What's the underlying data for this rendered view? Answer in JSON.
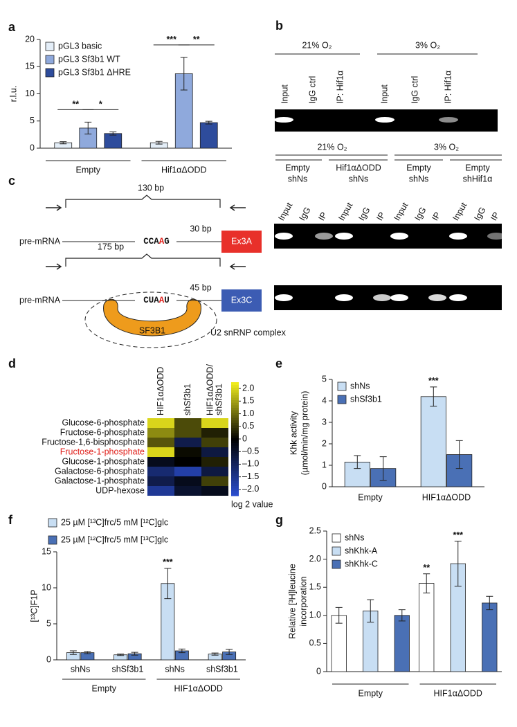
{
  "panel_labels": [
    "a",
    "b",
    "c",
    "d",
    "e",
    "f",
    "g"
  ],
  "gel_b": {
    "conditions": [
      "21% O₂",
      "3% O₂"
    ],
    "lanes": [
      "Input",
      "IgG ctrl",
      "IP: Hif1α",
      "Input",
      "IgG ctrl",
      "IP: Hif1α"
    ]
  },
  "gel_c": {
    "oxygen": [
      "21% O₂",
      "3% O₂"
    ],
    "conditions": [
      [
        "Empty",
        "shNs"
      ],
      [
        "Hif1αΔODD",
        "shNs"
      ],
      [
        "Empty",
        "shNs"
      ],
      [
        "Empty",
        "shHif1α"
      ]
    ],
    "lanes": [
      "Input",
      "IgG",
      "IP",
      "Input",
      "IgG",
      "IP",
      "Input",
      "IgG",
      "IP",
      "Input",
      "IgG",
      "IP"
    ]
  },
  "diagram_c": {
    "top": {
      "bracket": "130 bp",
      "distance": "30 bp",
      "label": "pre-mRNA",
      "motif": [
        "CCA",
        "A",
        "G"
      ],
      "exon": "Ex3A"
    },
    "bottom": {
      "bracket": "175 bp",
      "distance": "45 bp",
      "label": "pre-mRNA",
      "motif": [
        "CUA",
        "A",
        "U"
      ],
      "exon": "Ex3C",
      "protein": "SF3B1",
      "complex": "U2 snRNP complex"
    }
  },
  "chart_data": [
    {
      "type": "bar",
      "categories": [
        "Empty",
        "Hif1αΔODD"
      ],
      "ylabel": "r.l.u.",
      "ylim": [
        0,
        20
      ],
      "yticks": [
        0,
        5,
        10,
        15,
        20
      ],
      "legend": "upper left",
      "category_lines": true,
      "series": [
        {
          "name": "pGL3 basic",
          "color": "#e4eef8",
          "values": [
            1.0,
            1.0
          ],
          "errors": [
            0.2,
            0.25
          ]
        },
        {
          "name": "pGL3 Sf3b1 WT",
          "color": "#8fa9dc",
          "values": [
            3.7,
            13.7
          ],
          "errors": [
            1.1,
            3.0
          ]
        },
        {
          "name": "pGL3 Sf3b1 ΔHRE",
          "color": "#2e4c9c",
          "values": [
            2.7,
            4.7
          ],
          "errors": [
            0.3,
            0.25
          ]
        }
      ],
      "significance": [
        {
          "label": "**",
          "category": 0,
          "series": [
            0,
            1
          ]
        },
        {
          "label": "*",
          "category": 0,
          "series": [
            1,
            2
          ]
        },
        {
          "label": "***",
          "category": 1,
          "series": [
            0,
            1
          ]
        },
        {
          "label": "**",
          "category": 1,
          "series": [
            1,
            2
          ]
        }
      ]
    },
    {
      "type": "bar",
      "categories": [
        "Empty",
        "HIF1αΔODD"
      ],
      "ylabel": [
        "Khk activity",
        "(µmol/min/mg protein)"
      ],
      "ylim": [
        0,
        5
      ],
      "yticks": [
        0,
        1,
        2,
        3,
        4,
        5
      ],
      "legend": "upper left",
      "category_lines": false,
      "series": [
        {
          "name": "shNs",
          "color": "#c8def3",
          "values": [
            1.15,
            4.2
          ],
          "errors": [
            0.3,
            0.45
          ]
        },
        {
          "name": "shSf3b1",
          "color": "#4a70b5",
          "values": [
            0.85,
            1.5
          ],
          "errors": [
            0.55,
            0.65
          ]
        }
      ],
      "significance": [
        {
          "label": "***",
          "category": 1,
          "series": [
            0
          ]
        }
      ]
    },
    {
      "type": "bar",
      "categories": [
        "shNs",
        "shSf3b1",
        "shNs",
        "shSf3b1"
      ],
      "groups": [
        "Empty",
        "HIF1αΔODD"
      ],
      "ylabel": "[¹³C]F1P",
      "ylim": [
        0,
        15
      ],
      "yticks": [
        0,
        5,
        10,
        15
      ],
      "legend": "top",
      "category_lines": true,
      "series": [
        {
          "name": "25 µM [¹³C]frc/5 mM [¹²C]glc",
          "color": "#c8def3",
          "values": [
            1.0,
            0.7,
            10.6,
            0.8
          ],
          "errors": [
            0.25,
            0.1,
            2.1,
            0.15
          ]
        },
        {
          "name": "25 µM [¹²C]frc/5 mM [¹³C]glc",
          "color": "#4a70b5",
          "values": [
            1.0,
            0.85,
            1.25,
            1.1
          ],
          "errors": [
            0.15,
            0.2,
            0.25,
            0.35
          ]
        }
      ],
      "significance": [
        {
          "label": "***",
          "category": 2,
          "series": [
            0
          ]
        }
      ]
    },
    {
      "type": "bar",
      "categories": [
        "Empty",
        "HIF1αΔODD"
      ],
      "ylabel": [
        "Relative [³H]leucine",
        "incorporation"
      ],
      "ylim": [
        0,
        2.5
      ],
      "yticks": [
        0,
        0.5,
        {
          "value": 1,
          "label": "1.0"
        },
        1.5,
        {
          "value": 2,
          "label": "2.0"
        },
        2.5
      ],
      "legend": "upper left",
      "category_lines": true,
      "series": [
        {
          "name": "shNs",
          "color": "#ffffff",
          "values": [
            1.0,
            1.57
          ],
          "errors": [
            0.14,
            0.17
          ]
        },
        {
          "name": "shKhk-A",
          "color": "#c8def3",
          "values": [
            1.08,
            1.92
          ],
          "errors": [
            0.2,
            0.4
          ]
        },
        {
          "name": "shKhk-C",
          "color": "#4a70b5",
          "values": [
            1.0,
            1.22
          ],
          "errors": [
            0.1,
            0.12
          ]
        }
      ],
      "significance": [
        {
          "label": "**",
          "category": 1,
          "series": [
            0
          ]
        },
        {
          "label": "***",
          "category": 1,
          "series": [
            1
          ]
        }
      ]
    },
    {
      "type": "heatmap",
      "columns": [
        [
          "HIF1αΔODD"
        ],
        [
          "shSf3b1"
        ],
        [
          "HIF1αΔODD/",
          "shSf3b1"
        ]
      ],
      "rows": [
        "Glucose-6-phosphate",
        "Fructose-6-phosphate",
        "Fructose-1,6-bisphosphate",
        "Fructose-1-phosphate",
        "Glucose-1-phosphate",
        "Galactose-6-phosphate",
        "Galactose-1-phosphate",
        "UDP-hexose"
      ],
      "values": [
        [
          2.0,
          0.7,
          2.0
        ],
        [
          1.3,
          0.7,
          0.3
        ],
        [
          0.8,
          -0.8,
          0.6
        ],
        [
          2.0,
          0.1,
          -0.7
        ],
        [
          -0.3,
          0.0,
          0.3
        ],
        [
          -1.2,
          -1.8,
          -0.7
        ],
        [
          -0.8,
          -0.3,
          0.6
        ],
        [
          -1.6,
          -0.5,
          -0.3
        ]
      ],
      "highlight_row": 3,
      "highlight_color": "#e0201b",
      "low_color": "#2c4fd2",
      "mid_color": "#000000",
      "high_color": "#f4f01e",
      "zlim": [
        -2.25,
        2.25
      ],
      "zticks": [
        {
          "value": 2,
          "label": "2.0"
        },
        1.5,
        {
          "value": 1,
          "label": "1.0"
        },
        0.5,
        0,
        {
          "value": -0.5,
          "label": "–0.5"
        },
        {
          "value": -1,
          "label": "–1.0"
        },
        {
          "value": -1.5,
          "label": "–1.5"
        },
        {
          "value": -2,
          "label": "–2.0"
        }
      ],
      "colorbar_label": "log 2 value"
    }
  ]
}
